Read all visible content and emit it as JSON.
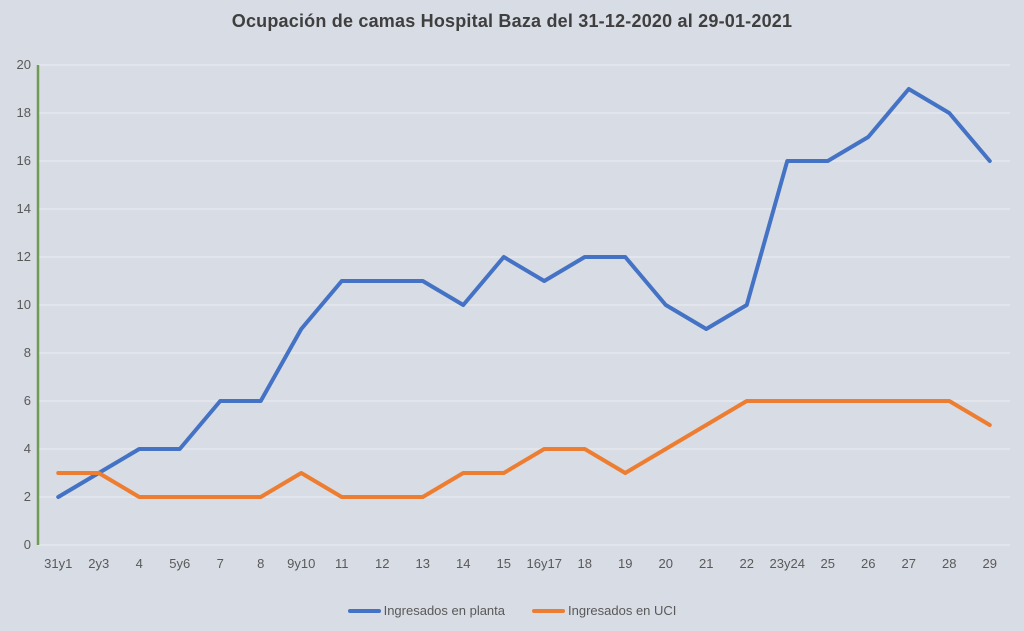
{
  "title": "Ocupación de camas Hospital Baza del 31-12-2020 al 29-01-2021",
  "colors": {
    "background": "#D8DCE4",
    "gridline": "rgba(255,255,255,0.5)",
    "axis_line": "#6F9B52",
    "title_text": "#3F3F3F",
    "tick_text": "#595959",
    "series_planta": "#4472C4",
    "series_uci": "#ED7D31"
  },
  "chart_data": {
    "type": "line",
    "title": "Ocupación de camas Hospital Baza del 31-12-2020 al 29-01-2021",
    "categories": [
      "31y1",
      "2y3",
      "4",
      "5y6",
      "7",
      "8",
      "9y10",
      "11",
      "12",
      "13",
      "14",
      "15",
      "16y17",
      "18",
      "19",
      "20",
      "21",
      "22",
      "23y24",
      "25",
      "26",
      "27",
      "28",
      "29"
    ],
    "series": [
      {
        "name": "Ingresados en planta",
        "color": "#4472C4",
        "values": [
          2,
          3,
          4,
          4,
          6,
          6,
          9,
          11,
          11,
          11,
          10,
          12,
          11,
          12,
          12,
          10,
          9,
          10,
          16,
          16,
          17,
          19,
          18,
          16
        ]
      },
      {
        "name": "Ingresados en UCI",
        "color": "#ED7D31",
        "values": [
          3,
          3,
          2,
          2,
          2,
          2,
          3,
          2,
          2,
          2,
          3,
          3,
          4,
          4,
          3,
          4,
          5,
          6,
          6,
          6,
          6,
          6,
          6,
          5
        ]
      }
    ],
    "xlabel": "",
    "ylabel": "",
    "ylim": [
      0,
      20
    ],
    "ytick_step": 2,
    "grid": "horizontal",
    "legend_position": "bottom"
  }
}
